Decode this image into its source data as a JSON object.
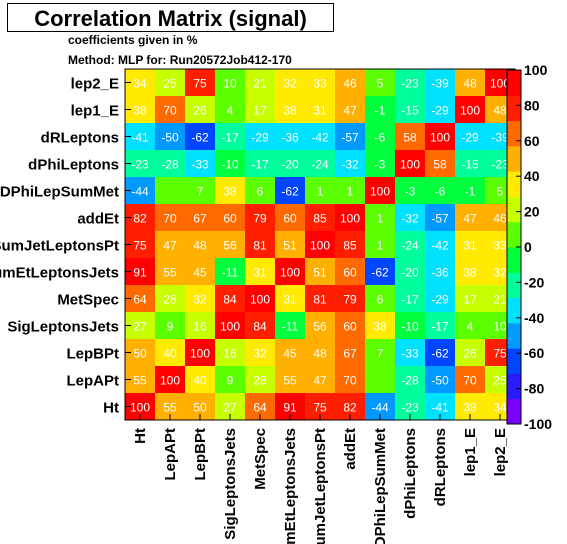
{
  "chart_data": {
    "type": "heatmap",
    "title": "Correlation Matrix (signal)",
    "subtitle": "coefficients given in %",
    "method": "Method: MLP for: Run20572Job412-170",
    "x_labels": [
      "Ht",
      "LepAPt",
      "LepBPt",
      "SigLeptonsJets",
      "MetSpec",
      "SumEtLeptonsJets",
      "VSumJetLeptonsPt",
      "addEt",
      "DPhiLepSumMet",
      "dPhiLeptons",
      "dRLeptons",
      "lep1_E",
      "lep2_E"
    ],
    "y_labels_top_to_bottom": [
      "lep2_E",
      "lep1_E",
      "dRLeptons",
      "dPhiLeptons",
      "DPhiLepSumMet",
      "addEt",
      "VSumJetLeptonsPt",
      "SumEtLeptonsJets",
      "MetSpec",
      "SigLeptonsJets",
      "LepBPt",
      "LepAPt",
      "Ht"
    ],
    "matrix_rows_top_to_bottom": [
      [
        "34",
        "25",
        "75",
        "10",
        "21",
        "32",
        "33",
        "46",
        "5",
        "-23",
        "-39",
        "48",
        "100"
      ],
      [
        "38",
        "70",
        "26",
        "4",
        "17",
        "38",
        "31",
        "47",
        "-1",
        "-15",
        "-29",
        "100",
        "48"
      ],
      [
        "-41",
        "-50",
        "-62",
        "-17",
        "-29",
        "-36",
        "-42",
        "-57",
        "-6",
        "58",
        "100",
        "-29",
        "-39"
      ],
      [
        "-23",
        "-28",
        "-33",
        "-10",
        "-17",
        "-20",
        "-24",
        "-32",
        "-3",
        "100",
        "58",
        "-15",
        "-23"
      ],
      [
        "-44",
        "",
        "7",
        "38",
        "6",
        "-62",
        "1",
        "1",
        "100",
        "-3",
        "-6",
        "-1",
        "5"
      ],
      [
        "82",
        "70",
        "67",
        "60",
        "79",
        "60",
        "85",
        "100",
        "1",
        "-32",
        "-57",
        "47",
        "46"
      ],
      [
        "75",
        "47",
        "48",
        "56",
        "81",
        "51",
        "100",
        "85",
        "1",
        "-24",
        "-42",
        "31",
        "33"
      ],
      [
        "91",
        "55",
        "45",
        "-11",
        "31",
        "100",
        "51",
        "60",
        "-62",
        "-20",
        "-36",
        "38",
        "32"
      ],
      [
        "64",
        "28",
        "32",
        "84",
        "100",
        "31",
        "81",
        "79",
        "6",
        "-17",
        "-29",
        "17",
        "21"
      ],
      [
        "27",
        "9",
        "16",
        "100",
        "84",
        "-11",
        "56",
        "60",
        "38",
        "-10",
        "-17",
        "4",
        "10"
      ],
      [
        "50",
        "40",
        "100",
        "16",
        "32",
        "45",
        "48",
        "67",
        "7",
        "-33",
        "-62",
        "26",
        "75"
      ],
      [
        "55",
        "100",
        "40",
        "9",
        "28",
        "55",
        "47",
        "70",
        "",
        "-28",
        "-50",
        "70",
        "25"
      ],
      [
        "100",
        "55",
        "50",
        "27",
        "64",
        "91",
        "75",
        "82",
        "-44",
        "-23",
        "-41",
        "38",
        "34"
      ]
    ],
    "zlim": [
      -100,
      100
    ],
    "colorbar_ticks": [
      "100",
      "80",
      "60",
      "40",
      "20",
      "0",
      "-20",
      "-40",
      "-60",
      "-80",
      "-100"
    ],
    "colorbar_colors_bottom_to_top": [
      "#7a00ff",
      "#2a1bff",
      "#0045ff",
      "#0099ff",
      "#00e0ff",
      "#00ff9c",
      "#00ff3c",
      "#5cff00",
      "#c8ff00",
      "#ffea00",
      "#ffb000",
      "#ff6a00",
      "#ff1e00",
      "#ff0000"
    ]
  }
}
